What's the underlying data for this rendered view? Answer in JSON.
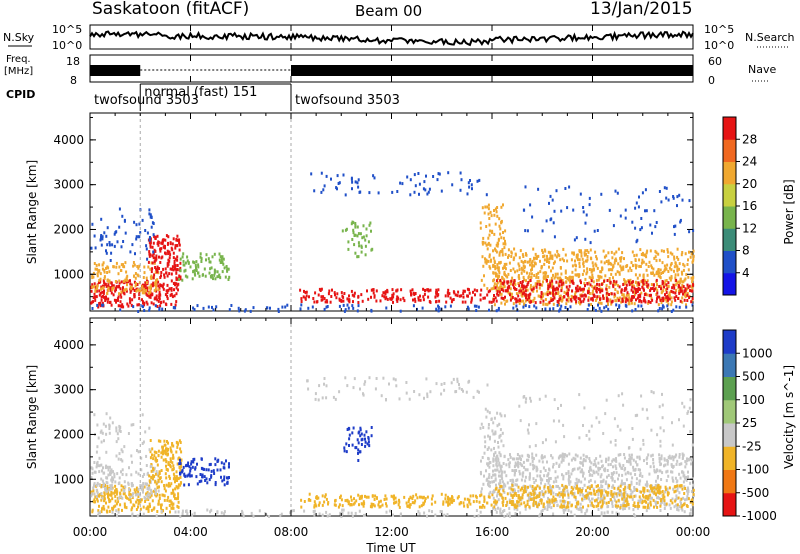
{
  "header": {
    "station": "Saskatoon (fitACF)",
    "beam": "Beam 00",
    "date": "13/Jan/2015"
  },
  "top_panels": {
    "nsky_label": "N.Sky",
    "nsky_top": "10^5",
    "nsky_bottom": "10^0",
    "nsearch_label": "N.Search",
    "nsearch_top": "10^5",
    "nsearch_bottom": "10^0",
    "freq_label_1": "Freq.",
    "freq_label_2": "[MHz]",
    "freq_ticks": [
      "18",
      "8"
    ],
    "nave_label": "Nave",
    "nave_ticks": [
      "60",
      "0"
    ],
    "cpid_label": "CPID",
    "cpid_segments": [
      {
        "label": "twofsound 3503",
        "start_h": 0.0,
        "end_h": 2.0
      },
      {
        "label": "normal (fast) 151",
        "start_h": 2.0,
        "end_h": 8.0
      },
      {
        "label": "twofsound 3503",
        "start_h": 8.0,
        "end_h": 24.0
      }
    ]
  },
  "chart_data": [
    {
      "type": "heatmap",
      "title": "Power",
      "ylabel": "Slant Range [km]",
      "ylim": [
        180,
        4600
      ],
      "yticks": [
        "1000",
        "2000",
        "3000",
        "4000"
      ],
      "colorbar_label": "Power [dB]",
      "colorbar_ticks": [
        "4",
        "8",
        "12",
        "16",
        "20",
        "24",
        "28"
      ],
      "colors": [
        "#1414e6",
        "#2050c8",
        "#3c8c78",
        "#78b44c",
        "#c8d040",
        "#f0a830",
        "#f06820",
        "#e61414"
      ]
    },
    {
      "type": "heatmap",
      "title": "Velocity",
      "ylabel": "Slant Range [km]",
      "ylim": [
        180,
        4600
      ],
      "yticks": [
        "1000",
        "2000",
        "3000",
        "4000"
      ],
      "colorbar_label": "Velocity [m s^-1]",
      "colorbar_ticks": [
        "1000",
        "500",
        "100",
        "25",
        "-25",
        "-100",
        "-500",
        "-1000"
      ],
      "colors": [
        "#1e3cc8",
        "#3c78b4",
        "#5ca050",
        "#a0c878",
        "#c8c8c8",
        "#f0b428",
        "#f07814",
        "#e61414"
      ]
    }
  ],
  "x_axis": {
    "label": "Time UT",
    "ticks": [
      "00:00",
      "04:00",
      "08:00",
      "12:00",
      "16:00",
      "20:00",
      "00:00"
    ]
  }
}
